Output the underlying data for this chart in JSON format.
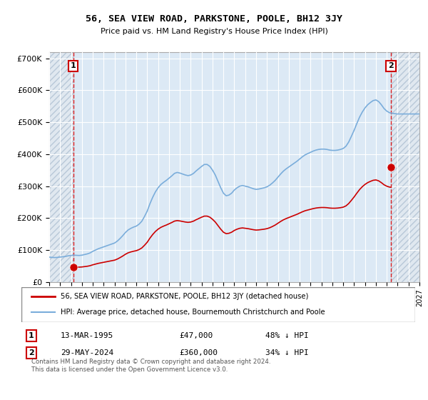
{
  "title": "56, SEA VIEW ROAD, PARKSTONE, POOLE, BH12 3JY",
  "subtitle": "Price paid vs. HM Land Registry's House Price Index (HPI)",
  "ylim": [
    0,
    720000
  ],
  "yticks": [
    0,
    100000,
    200000,
    300000,
    400000,
    500000,
    600000,
    700000
  ],
  "ytick_labels": [
    "£0",
    "£100K",
    "£200K",
    "£300K",
    "£400K",
    "£500K",
    "£600K",
    "£700K"
  ],
  "xlim_start": 1993.0,
  "xlim_end": 2027.0,
  "background_color": "#ffffff",
  "plot_bg_color": "#dce9f5",
  "hatch_bg_color": "#d0d8e0",
  "grid_color": "#ffffff",
  "legend_entry1": "56, SEA VIEW ROAD, PARKSTONE, POOLE, BH12 3JY (detached house)",
  "legend_entry2": "HPI: Average price, detached house, Bournemouth Christchurch and Poole",
  "sale1_date": 1995.21,
  "sale1_price": 47000,
  "sale2_date": 2024.38,
  "sale2_price": 360000,
  "copyright_text": "Contains HM Land Registry data © Crown copyright and database right 2024.\nThis data is licensed under the Open Government Licence v3.0.",
  "red_line_color": "#cc0000",
  "blue_line_color": "#7aaddb",
  "sale_dot_color": "#cc0000",
  "hpi_data": [
    [
      1993.0,
      78000
    ],
    [
      1993.25,
      77000
    ],
    [
      1993.5,
      76500
    ],
    [
      1993.75,
      77000
    ],
    [
      1994.0,
      78000
    ],
    [
      1994.25,
      79000
    ],
    [
      1994.5,
      80000
    ],
    [
      1994.75,
      82000
    ],
    [
      1995.0,
      83000
    ],
    [
      1995.25,
      84000
    ],
    [
      1995.5,
      83500
    ],
    [
      1995.75,
      83000
    ],
    [
      1996.0,
      84000
    ],
    [
      1996.25,
      86000
    ],
    [
      1996.5,
      88000
    ],
    [
      1996.75,
      91000
    ],
    [
      1997.0,
      96000
    ],
    [
      1997.25,
      100000
    ],
    [
      1997.5,
      104000
    ],
    [
      1997.75,
      107000
    ],
    [
      1998.0,
      110000
    ],
    [
      1998.25,
      113000
    ],
    [
      1998.5,
      116000
    ],
    [
      1998.75,
      119000
    ],
    [
      1999.0,
      122000
    ],
    [
      1999.25,
      128000
    ],
    [
      1999.5,
      136000
    ],
    [
      1999.75,
      145000
    ],
    [
      2000.0,
      155000
    ],
    [
      2000.25,
      163000
    ],
    [
      2000.5,
      168000
    ],
    [
      2000.75,
      172000
    ],
    [
      2001.0,
      175000
    ],
    [
      2001.25,
      181000
    ],
    [
      2001.5,
      190000
    ],
    [
      2001.75,
      205000
    ],
    [
      2002.0,
      222000
    ],
    [
      2002.25,
      245000
    ],
    [
      2002.5,
      265000
    ],
    [
      2002.75,
      282000
    ],
    [
      2003.0,
      295000
    ],
    [
      2003.25,
      305000
    ],
    [
      2003.5,
      312000
    ],
    [
      2003.75,
      318000
    ],
    [
      2004.0,
      325000
    ],
    [
      2004.25,
      332000
    ],
    [
      2004.5,
      340000
    ],
    [
      2004.75,
      343000
    ],
    [
      2005.0,
      341000
    ],
    [
      2005.25,
      338000
    ],
    [
      2005.5,
      335000
    ],
    [
      2005.75,
      333000
    ],
    [
      2006.0,
      335000
    ],
    [
      2006.25,
      340000
    ],
    [
      2006.5,
      348000
    ],
    [
      2006.75,
      355000
    ],
    [
      2007.0,
      362000
    ],
    [
      2007.25,
      368000
    ],
    [
      2007.5,
      368000
    ],
    [
      2007.75,
      362000
    ],
    [
      2008.0,
      350000
    ],
    [
      2008.25,
      335000
    ],
    [
      2008.5,
      315000
    ],
    [
      2008.75,
      295000
    ],
    [
      2009.0,
      278000
    ],
    [
      2009.25,
      270000
    ],
    [
      2009.5,
      272000
    ],
    [
      2009.75,
      278000
    ],
    [
      2010.0,
      288000
    ],
    [
      2010.25,
      295000
    ],
    [
      2010.5,
      300000
    ],
    [
      2010.75,
      302000
    ],
    [
      2011.0,
      300000
    ],
    [
      2011.25,
      298000
    ],
    [
      2011.5,
      295000
    ],
    [
      2011.75,
      292000
    ],
    [
      2012.0,
      290000
    ],
    [
      2012.25,
      291000
    ],
    [
      2012.5,
      293000
    ],
    [
      2012.75,
      295000
    ],
    [
      2013.0,
      298000
    ],
    [
      2013.25,
      303000
    ],
    [
      2013.5,
      310000
    ],
    [
      2013.75,
      318000
    ],
    [
      2014.0,
      328000
    ],
    [
      2014.25,
      338000
    ],
    [
      2014.5,
      347000
    ],
    [
      2014.75,
      354000
    ],
    [
      2015.0,
      360000
    ],
    [
      2015.25,
      366000
    ],
    [
      2015.5,
      372000
    ],
    [
      2015.75,
      378000
    ],
    [
      2016.0,
      385000
    ],
    [
      2016.25,
      392000
    ],
    [
      2016.5,
      398000
    ],
    [
      2016.75,
      402000
    ],
    [
      2017.0,
      406000
    ],
    [
      2017.25,
      410000
    ],
    [
      2017.5,
      413000
    ],
    [
      2017.75,
      415000
    ],
    [
      2018.0,
      416000
    ],
    [
      2018.25,
      416000
    ],
    [
      2018.5,
      415000
    ],
    [
      2018.75,
      413000
    ],
    [
      2019.0,
      412000
    ],
    [
      2019.25,
      412000
    ],
    [
      2019.5,
      413000
    ],
    [
      2019.75,
      415000
    ],
    [
      2020.0,
      418000
    ],
    [
      2020.25,
      425000
    ],
    [
      2020.5,
      438000
    ],
    [
      2020.75,
      456000
    ],
    [
      2021.0,
      475000
    ],
    [
      2021.25,
      496000
    ],
    [
      2021.5,
      516000
    ],
    [
      2021.75,
      532000
    ],
    [
      2022.0,
      545000
    ],
    [
      2022.25,
      555000
    ],
    [
      2022.5,
      562000
    ],
    [
      2022.75,
      568000
    ],
    [
      2023.0,
      570000
    ],
    [
      2023.25,
      565000
    ],
    [
      2023.5,
      555000
    ],
    [
      2023.75,
      543000
    ],
    [
      2024.0,
      535000
    ],
    [
      2024.25,
      530000
    ],
    [
      2024.5,
      528000
    ],
    [
      2024.75,
      527000
    ],
    [
      2025.0,
      526000
    ],
    [
      2025.5,
      526000
    ],
    [
      2026.0,
      526000
    ],
    [
      2026.5,
      526000
    ],
    [
      2027.0,
      526000
    ]
  ]
}
